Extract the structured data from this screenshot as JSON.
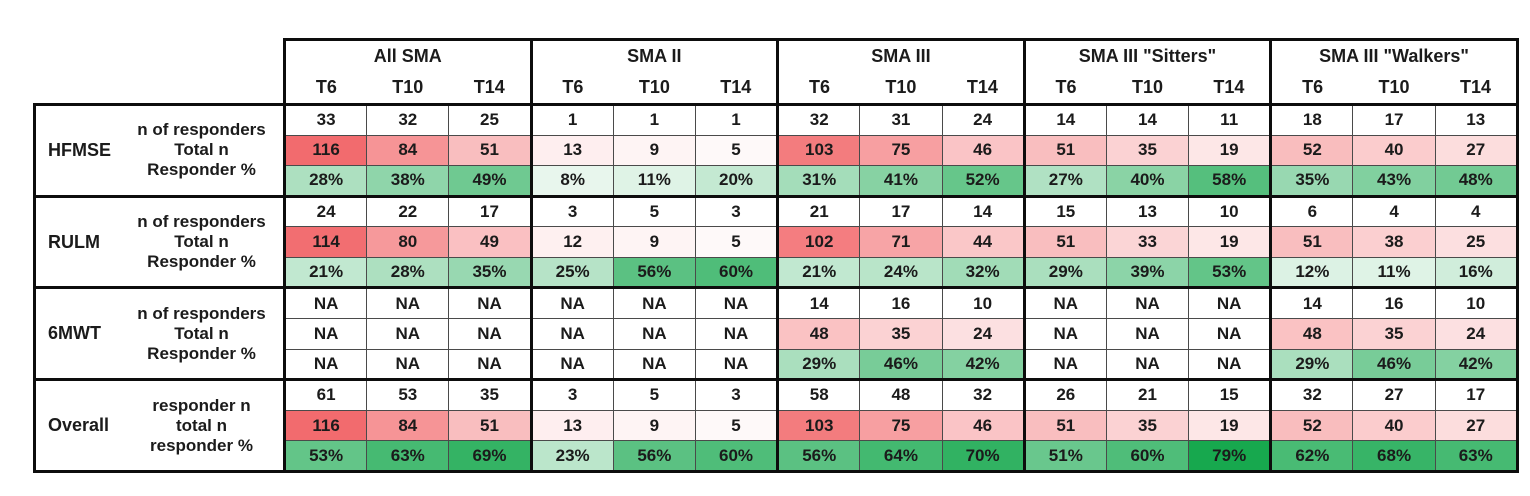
{
  "chart_data": {
    "type": "table",
    "column_groups": [
      "All SMA",
      "SMA II",
      "SMA III",
      "SMA III \"Sitters\"",
      "SMA III \"Walkers\""
    ],
    "timepoints": [
      "T6",
      "T10",
      "T14"
    ],
    "row_groups": [
      {
        "name": "HFMSE",
        "rows": [
          {
            "label": "n of responders",
            "scale": "none",
            "values": [
              "33",
              "32",
              "25",
              "1",
              "1",
              "1",
              "32",
              "31",
              "24",
              "14",
              "14",
              "11",
              "18",
              "17",
              "13"
            ]
          },
          {
            "label": "Total n",
            "scale": "red",
            "values": [
              "116",
              "84",
              "51",
              "13",
              "9",
              "5",
              "103",
              "75",
              "46",
              "51",
              "35",
              "19",
              "52",
              "40",
              "27"
            ]
          },
          {
            "label": "Responder %",
            "scale": "green",
            "values": [
              "28%",
              "38%",
              "49%",
              "8%",
              "11%",
              "20%",
              "31%",
              "41%",
              "52%",
              "27%",
              "40%",
              "58%",
              "35%",
              "43%",
              "48%"
            ]
          }
        ]
      },
      {
        "name": "RULM",
        "rows": [
          {
            "label": "n of responders",
            "scale": "none",
            "values": [
              "24",
              "22",
              "17",
              "3",
              "5",
              "3",
              "21",
              "17",
              "14",
              "15",
              "13",
              "10",
              "6",
              "4",
              "4"
            ]
          },
          {
            "label": "Total n",
            "scale": "red",
            "values": [
              "114",
              "80",
              "49",
              "12",
              "9",
              "5",
              "102",
              "71",
              "44",
              "51",
              "33",
              "19",
              "51",
              "38",
              "25"
            ]
          },
          {
            "label": "Responder %",
            "scale": "green",
            "values": [
              "21%",
              "28%",
              "35%",
              "25%",
              "56%",
              "60%",
              "21%",
              "24%",
              "32%",
              "29%",
              "39%",
              "53%",
              "12%",
              "11%",
              "16%"
            ]
          }
        ]
      },
      {
        "name": "6MWT",
        "rows": [
          {
            "label": "n of responders",
            "scale": "none",
            "values": [
              "NA",
              "NA",
              "NA",
              "NA",
              "NA",
              "NA",
              "14",
              "16",
              "10",
              "NA",
              "NA",
              "NA",
              "14",
              "16",
              "10"
            ]
          },
          {
            "label": "Total n",
            "scale": "red",
            "values": [
              "NA",
              "NA",
              "NA",
              "NA",
              "NA",
              "NA",
              "48",
              "35",
              "24",
              "NA",
              "NA",
              "NA",
              "48",
              "35",
              "24"
            ]
          },
          {
            "label": "Responder %",
            "scale": "green",
            "values": [
              "NA",
              "NA",
              "NA",
              "NA",
              "NA",
              "NA",
              "29%",
              "46%",
              "42%",
              "NA",
              "NA",
              "NA",
              "29%",
              "46%",
              "42%"
            ]
          }
        ]
      },
      {
        "name": "Overall",
        "rows": [
          {
            "label": "responder n",
            "scale": "none",
            "values": [
              "61",
              "53",
              "35",
              "3",
              "5",
              "3",
              "58",
              "48",
              "32",
              "26",
              "21",
              "15",
              "32",
              "27",
              "17"
            ]
          },
          {
            "label": "total n",
            "scale": "red",
            "values": [
              "116",
              "84",
              "51",
              "13",
              "9",
              "5",
              "103",
              "75",
              "46",
              "51",
              "35",
              "19",
              "52",
              "40",
              "27"
            ]
          },
          {
            "label": "responder %",
            "scale": "green",
            "values": [
              "53%",
              "63%",
              "69%",
              "23%",
              "56%",
              "60%",
              "56%",
              "64%",
              "70%",
              "51%",
              "60%",
              "79%",
              "62%",
              "68%",
              "63%"
            ]
          }
        ]
      }
    ],
    "heatmap": {
      "red_max_color": "#F26B6E",
      "green_max_color": "#17A84E",
      "red_scale_max": 116,
      "green_scale_max": 79
    }
  }
}
